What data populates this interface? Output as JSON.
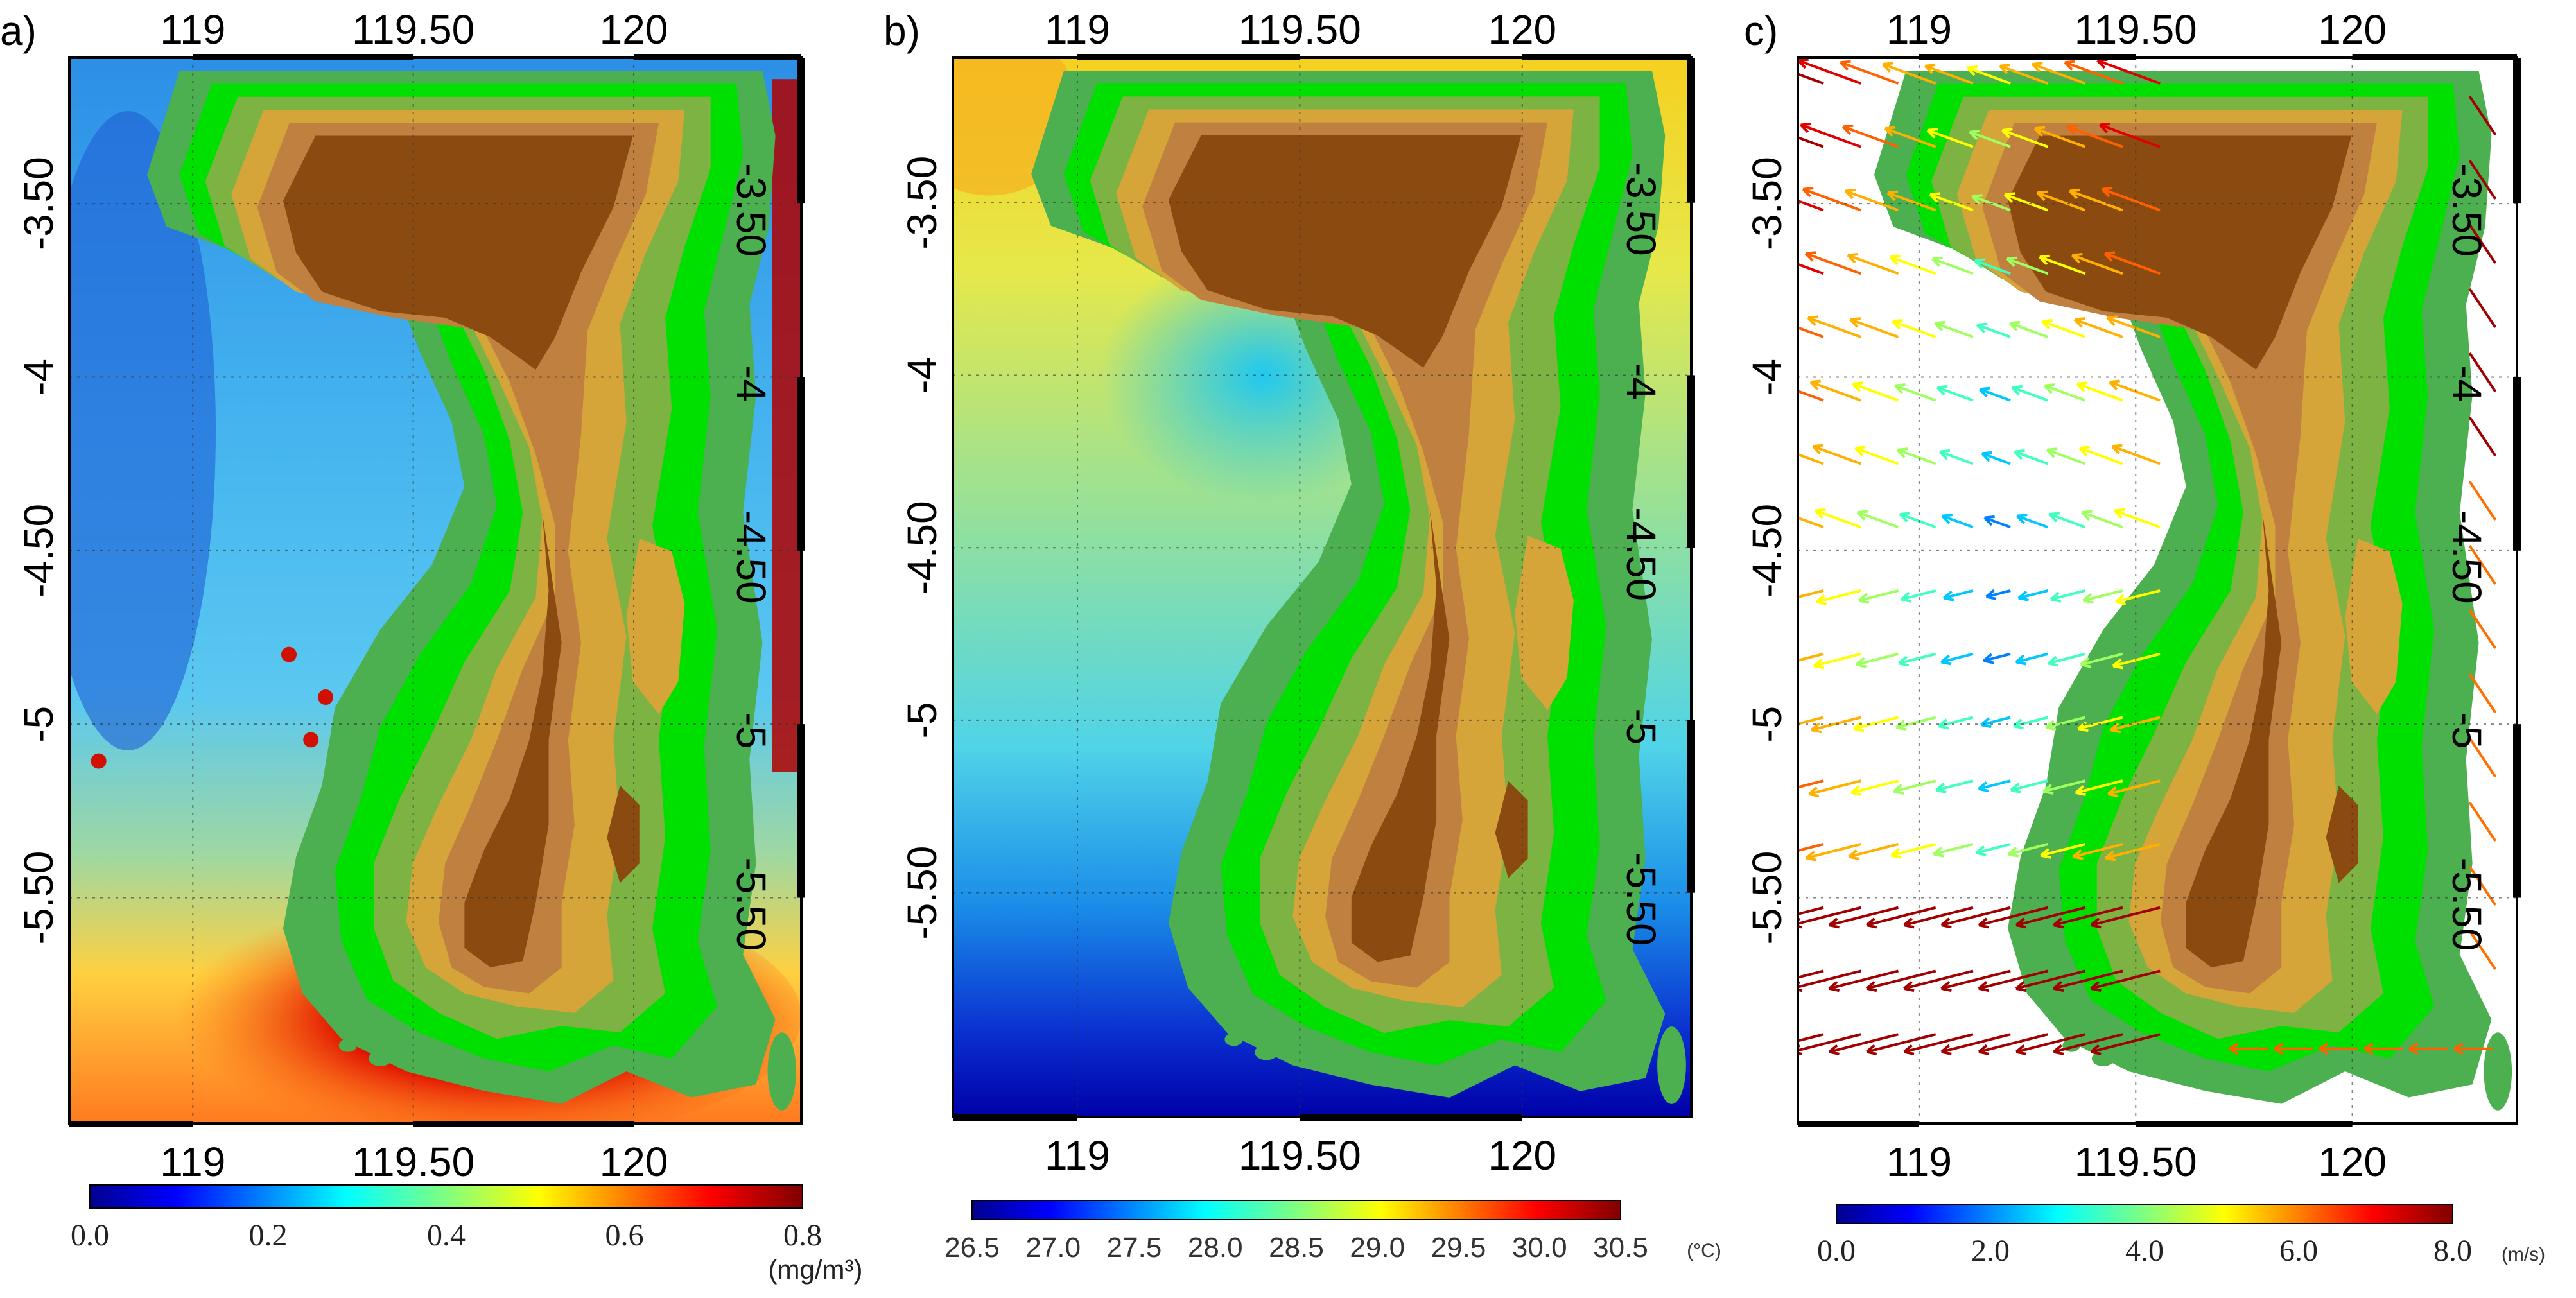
{
  "panels": [
    {
      "id": "a",
      "label": "a)",
      "top_ticks": [
        "119",
        "119.50",
        "120"
      ],
      "bottom_ticks": [
        "119",
        "119.50",
        "120"
      ],
      "left_ticks": [
        "-3.50",
        "-4",
        "-4.50",
        "-5",
        "-5.50"
      ],
      "right_ticks": [
        "-3.50",
        "-4",
        "-4.50",
        "-5",
        "-5.50"
      ],
      "colorbar": {
        "ticks": [
          "0.0",
          "0.2",
          "0.4",
          "0.6",
          "0.8"
        ],
        "unit": "(mg/m³)"
      }
    },
    {
      "id": "b",
      "label": "b)",
      "top_ticks": [
        "119",
        "119.50",
        "120"
      ],
      "bottom_ticks": [
        "119",
        "119.50",
        "120"
      ],
      "left_ticks": [
        "-3.50",
        "-4",
        "-4.50",
        "-5",
        "-5.50"
      ],
      "right_ticks": [
        "-3.50",
        "-4",
        "-4.50",
        "-5",
        "-5.50"
      ],
      "colorbar": {
        "ticks": [
          "26.5",
          "27.0",
          "27.5",
          "28.0",
          "28.5",
          "29.0",
          "29.5",
          "30.0",
          "30.5"
        ],
        "unit": "(°C)"
      }
    },
    {
      "id": "c",
      "label": "c)",
      "top_ticks": [
        "119",
        "119.50",
        "120"
      ],
      "bottom_ticks": [
        "119",
        "119.50",
        "120"
      ],
      "left_ticks": [
        "-3.50",
        "-4",
        "-4.50",
        "-5",
        "-5.50"
      ],
      "right_ticks": [
        "-3.50",
        "-4",
        "-4.50",
        "-5",
        "-5.50"
      ],
      "colorbar": {
        "ticks": [
          "0.0",
          "2.0",
          "4.0",
          "6.0",
          "8.0"
        ],
        "unit": "(m/s)"
      }
    }
  ],
  "colors": {
    "jet": [
      "#00008f",
      "#0000ff",
      "#0080ff",
      "#00ffff",
      "#80ff80",
      "#ffff00",
      "#ff8000",
      "#ff0000",
      "#800000"
    ],
    "terrain": [
      "#4caf50",
      "#00e000",
      "#7cb342",
      "#d6a53a",
      "#c08040",
      "#8b4a10"
    ]
  }
}
